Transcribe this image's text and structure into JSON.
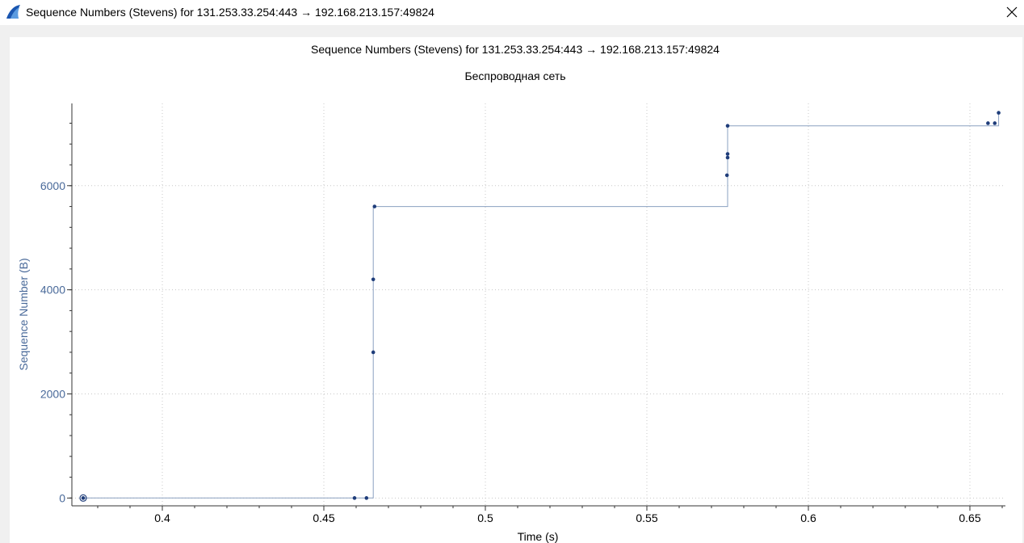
{
  "window": {
    "title": "Sequence Numbers (Stevens) for 131.253.33.254:443 → 192.168.213.157:49824"
  },
  "icons": {
    "app": "wireshark-fin-icon",
    "close": "close-icon"
  },
  "colors": {
    "series": "#1f3d7a",
    "line": "#8aa0c0",
    "axis_label": "#4a6a9a",
    "grid": "#c8c8c8"
  },
  "chart_data": {
    "type": "line",
    "title": "Sequence Numbers (Stevens) for 131.253.33.254:443 → 192.168.213.157:49824",
    "subtitle": "Беспроводная сеть",
    "xlabel": "Time (s)",
    "ylabel": "Sequence Number (B)",
    "xlim": [
      0.372,
      0.661
    ],
    "ylim": [
      -150,
      7580
    ],
    "xticks": [
      0.4,
      0.45,
      0.5,
      0.55,
      0.6,
      0.65
    ],
    "xtick_labels": [
      "0.4",
      "0.45",
      "0.5",
      "0.55",
      "0.6",
      "0.65"
    ],
    "yticks": [
      0,
      2000,
      4000,
      6000
    ],
    "ytick_labels": [
      "0",
      "2000",
      "4000",
      "6000"
    ],
    "grid": true,
    "points": [
      {
        "x": 0.3755,
        "y": 0
      },
      {
        "x": 0.4595,
        "y": 0
      },
      {
        "x": 0.4632,
        "y": 0
      },
      {
        "x": 0.4653,
        "y": 2800
      },
      {
        "x": 0.4653,
        "y": 4200
      },
      {
        "x": 0.4657,
        "y": 5600
      },
      {
        "x": 0.5748,
        "y": 6200
      },
      {
        "x": 0.575,
        "y": 6540
      },
      {
        "x": 0.575,
        "y": 6610
      },
      {
        "x": 0.575,
        "y": 7150
      },
      {
        "x": 0.6556,
        "y": 7200
      },
      {
        "x": 0.6577,
        "y": 7200
      },
      {
        "x": 0.6589,
        "y": 7400
      }
    ],
    "step_line": [
      [
        0.3755,
        0
      ],
      [
        0.4653,
        0
      ],
      [
        0.4653,
        5600
      ],
      [
        0.575,
        5600
      ],
      [
        0.575,
        7150
      ],
      [
        0.6589,
        7150
      ],
      [
        0.6589,
        7400
      ]
    ]
  }
}
